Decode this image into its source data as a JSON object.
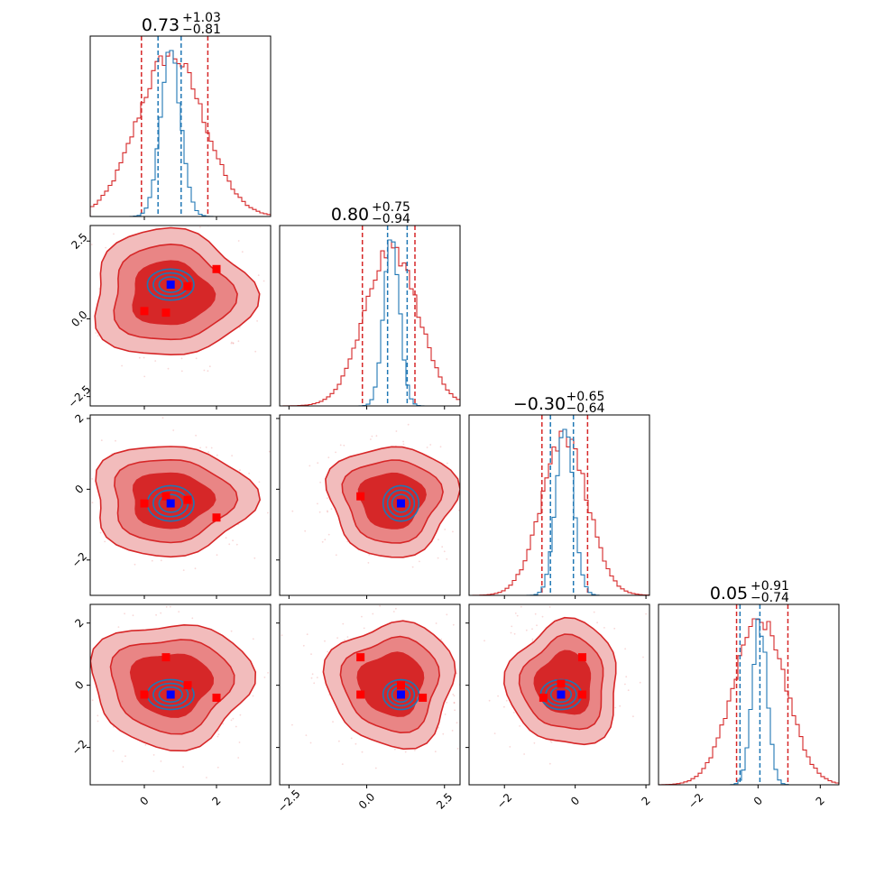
{
  "chart_data": {
    "type": "corner",
    "colors": {
      "red": "#d62728",
      "red_fill_outer": "#f2bcbc",
      "red_fill_mid": "#e98585",
      "red_fill_inner": "#d62728",
      "blue": "#1f77b4",
      "blue_marker": "#0000ff",
      "red_marker": "#ff0000"
    },
    "parameters": [
      {
        "range": [
          -1.5,
          3.5
        ],
        "ticks": [
          0,
          2
        ],
        "tick_labels": [
          "0",
          "2"
        ]
      },
      {
        "range": [
          -2.8,
          3.0
        ],
        "ticks": [
          -2.5,
          0,
          2.5
        ],
        "tick_labels": [
          "−2.5",
          "0.0",
          "2.5"
        ]
      },
      {
        "range": [
          -3.0,
          2.1
        ],
        "ticks": [
          -2,
          0,
          2
        ],
        "tick_labels": [
          "−2",
          "0",
          "2"
        ]
      },
      {
        "range": [
          -3.2,
          2.6
        ],
        "ticks": [
          -2,
          0,
          2
        ],
        "tick_labels": [
          "−2",
          "0",
          "2"
        ]
      }
    ],
    "titles": [
      {
        "value": "0.73",
        "plus": "+1.03",
        "minus": "−0.81"
      },
      {
        "value": "0.80",
        "plus": "+0.75",
        "minus": "−0.94"
      },
      {
        "value": "−0.30",
        "plus": "+0.65",
        "minus": "−0.64"
      },
      {
        "value": "0.05",
        "plus": "+0.91",
        "minus": "−0.74"
      }
    ],
    "series": [
      {
        "name": "",
        "color": "#d62728",
        "means": [
          0.73,
          0.8,
          -0.3,
          0.05
        ],
        "sigmas": [
          0.92,
          0.85,
          0.65,
          0.83
        ],
        "quantiles": [
          [
            -0.08,
            1.76
          ],
          [
            -0.14,
            1.55
          ],
          [
            -0.94,
            0.35
          ],
          [
            -0.69,
            0.96
          ]
        ]
      },
      {
        "name": "",
        "color": "#1f77b4",
        "means": [
          0.73,
          0.8,
          -0.3,
          0.05
        ],
        "sigmas": [
          0.28,
          0.25,
          0.25,
          0.24
        ],
        "quantiles": [
          [
            0.38,
            1.02
          ],
          [
            0.67,
            1.3
          ],
          [
            -0.7,
            -0.05
          ],
          [
            -0.58,
            0.06
          ]
        ]
      }
    ],
    "markers": {
      "blue": [
        0.73,
        1.1,
        -0.4,
        -0.3
      ],
      "red_points": [
        {
          "pair": [
            0,
            1
          ],
          "pts": [
            [
              0.0,
              0.25
            ],
            [
              0.6,
              0.2
            ],
            [
              1.2,
              1.05
            ],
            [
              2.0,
              1.6
            ]
          ]
        },
        {
          "pair": [
            0,
            2
          ],
          "pts": [
            [
              0.0,
              -0.4
            ],
            [
              0.6,
              -0.2
            ],
            [
              1.2,
              -0.3
            ],
            [
              2.0,
              -0.8
            ]
          ]
        },
        {
          "pair": [
            1,
            2
          ],
          "pts": [
            [
              -0.2,
              -0.2
            ],
            [
              1.1,
              -0.4
            ]
          ]
        },
        {
          "pair": [
            0,
            3
          ],
          "pts": [
            [
              0.0,
              -0.3
            ],
            [
              0.6,
              0.9
            ],
            [
              1.2,
              0.0
            ],
            [
              2.0,
              -0.4
            ]
          ]
        },
        {
          "pair": [
            1,
            3
          ],
          "pts": [
            [
              -0.2,
              0.9
            ],
            [
              -0.2,
              -0.3
            ],
            [
              1.1,
              0.0
            ],
            [
              1.8,
              -0.4
            ]
          ]
        },
        {
          "pair": [
            2,
            3
          ],
          "pts": [
            [
              -0.4,
              0.05
            ],
            [
              0.2,
              0.9
            ],
            [
              -0.9,
              -0.4
            ],
            [
              0.2,
              -0.3
            ]
          ]
        }
      ]
    },
    "grid": false,
    "legend": "none"
  }
}
